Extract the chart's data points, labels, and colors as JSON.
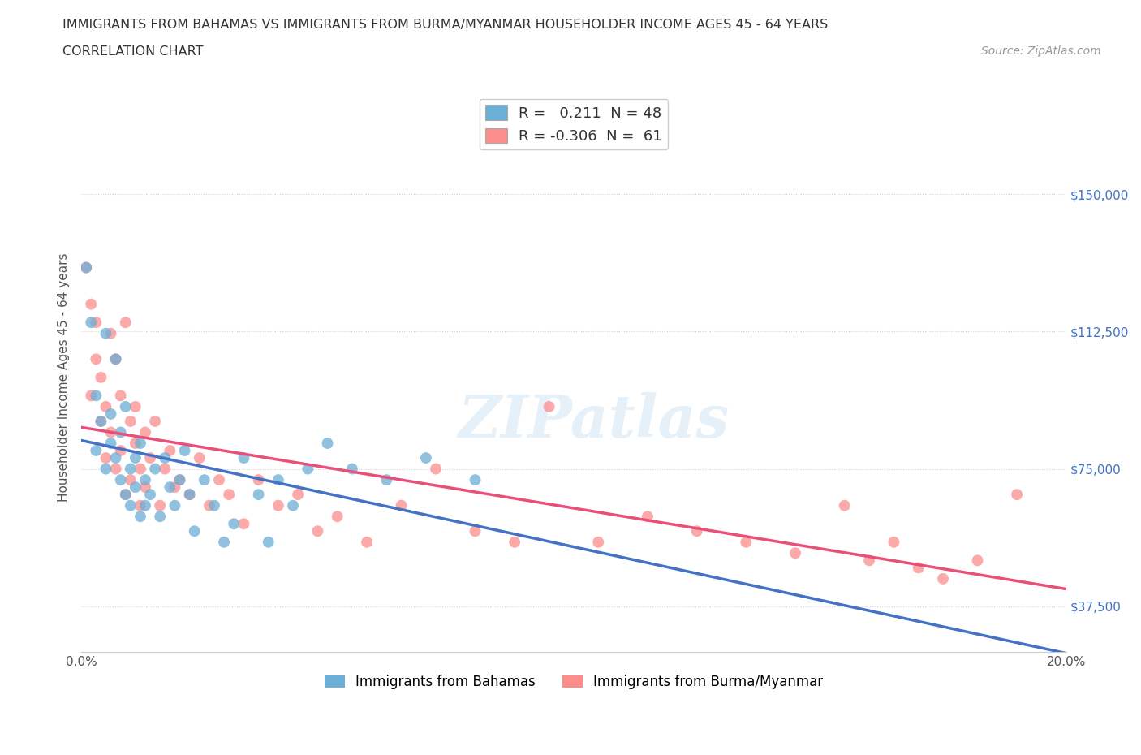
{
  "title_line1": "IMMIGRANTS FROM BAHAMAS VS IMMIGRANTS FROM BURMA/MYANMAR HOUSEHOLDER INCOME AGES 45 - 64 YEARS",
  "title_line2": "CORRELATION CHART",
  "source_text": "Source: ZipAtlas.com",
  "ylabel": "Householder Income Ages 45 - 64 years",
  "xlim": [
    0.0,
    0.2
  ],
  "ylim": [
    25000,
    175000
  ],
  "xtick_labels": [
    "0.0%",
    "",
    "",
    "",
    "20.0%"
  ],
  "xtick_values": [
    0.0,
    0.05,
    0.1,
    0.15,
    0.2
  ],
  "ytick_values": [
    37500,
    75000,
    112500,
    150000
  ],
  "ytick_labels": [
    "$37,500",
    "$75,000",
    "$112,500",
    "$150,000"
  ],
  "bahamas_color": "#6baed6",
  "bahamas_edge_color": "#6baed6",
  "burma_color": "#fc8d8d",
  "burma_edge_color": "#fc8d8d",
  "legend_bahamas_label": "Immigrants from Bahamas",
  "legend_burma_label": "Immigrants from Burma/Myanmar",
  "r_bahamas": 0.211,
  "n_bahamas": 48,
  "r_burma": -0.306,
  "n_burma": 61,
  "watermark_text": "ZIPatlas",
  "background_color": "#ffffff",
  "bahamas_x": [
    0.001,
    0.002,
    0.003,
    0.003,
    0.004,
    0.005,
    0.005,
    0.006,
    0.006,
    0.007,
    0.007,
    0.008,
    0.008,
    0.009,
    0.009,
    0.01,
    0.01,
    0.011,
    0.011,
    0.012,
    0.012,
    0.013,
    0.013,
    0.014,
    0.015,
    0.016,
    0.017,
    0.018,
    0.019,
    0.02,
    0.021,
    0.022,
    0.023,
    0.025,
    0.027,
    0.029,
    0.031,
    0.033,
    0.036,
    0.038,
    0.04,
    0.043,
    0.046,
    0.05,
    0.055,
    0.062,
    0.07,
    0.08
  ],
  "bahamas_y": [
    130000,
    115000,
    80000,
    95000,
    88000,
    75000,
    112000,
    82000,
    90000,
    78000,
    105000,
    72000,
    85000,
    68000,
    92000,
    75000,
    65000,
    78000,
    70000,
    82000,
    62000,
    72000,
    65000,
    68000,
    75000,
    62000,
    78000,
    70000,
    65000,
    72000,
    80000,
    68000,
    58000,
    72000,
    65000,
    55000,
    60000,
    78000,
    68000,
    55000,
    72000,
    65000,
    75000,
    82000,
    75000,
    72000,
    78000,
    72000
  ],
  "burma_x": [
    0.001,
    0.002,
    0.002,
    0.003,
    0.003,
    0.004,
    0.004,
    0.005,
    0.005,
    0.006,
    0.006,
    0.007,
    0.007,
    0.008,
    0.008,
    0.009,
    0.009,
    0.01,
    0.01,
    0.011,
    0.011,
    0.012,
    0.012,
    0.013,
    0.013,
    0.014,
    0.015,
    0.016,
    0.017,
    0.018,
    0.019,
    0.02,
    0.022,
    0.024,
    0.026,
    0.028,
    0.03,
    0.033,
    0.036,
    0.04,
    0.044,
    0.048,
    0.052,
    0.058,
    0.065,
    0.072,
    0.08,
    0.088,
    0.095,
    0.105,
    0.115,
    0.125,
    0.135,
    0.145,
    0.155,
    0.16,
    0.165,
    0.17,
    0.175,
    0.182,
    0.19
  ],
  "burma_y": [
    130000,
    120000,
    95000,
    105000,
    115000,
    88000,
    100000,
    92000,
    78000,
    112000,
    85000,
    105000,
    75000,
    95000,
    80000,
    115000,
    68000,
    88000,
    72000,
    82000,
    92000,
    75000,
    65000,
    85000,
    70000,
    78000,
    88000,
    65000,
    75000,
    80000,
    70000,
    72000,
    68000,
    78000,
    65000,
    72000,
    68000,
    60000,
    72000,
    65000,
    68000,
    58000,
    62000,
    55000,
    65000,
    75000,
    58000,
    55000,
    92000,
    55000,
    62000,
    58000,
    55000,
    52000,
    65000,
    50000,
    55000,
    48000,
    45000,
    50000,
    68000
  ],
  "trendline_color_bahamas": "#4472c4",
  "trendline_color_burma": "#e8507a",
  "trendline_dashed_color": "#b8d0e8",
  "grid_color": "#e8e8e8",
  "grid_dotted_color": "#d0d0d0"
}
